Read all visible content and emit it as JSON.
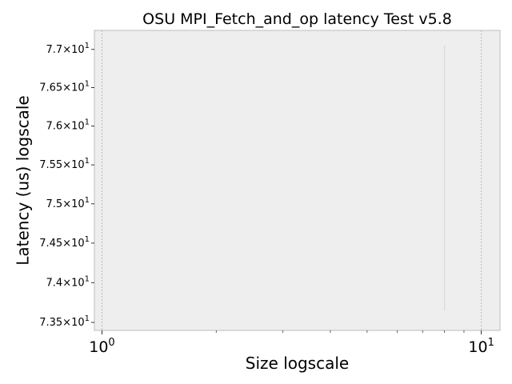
{
  "chart_data": {
    "type": "line",
    "title": "OSU MPI_Fetch_and_op latency Test v5.8",
    "xlabel": "Size logscale",
    "ylabel": "Latency (us) logscale",
    "xscale": "log",
    "yscale": "log",
    "xlim": [
      0.955,
      11.2
    ],
    "ylim": [
      73.4,
      77.25
    ],
    "x_ticks": [
      {
        "value": 1,
        "mantissa": "10",
        "exp": "0"
      },
      {
        "value": 10,
        "mantissa": "10",
        "exp": "1"
      }
    ],
    "y_ticks": [
      {
        "value": 73.5,
        "label": "7.35×10",
        "exp": "1"
      },
      {
        "value": 74.0,
        "label": "7.4×10",
        "exp": "1"
      },
      {
        "value": 74.5,
        "label": "7.45×10",
        "exp": "1"
      },
      {
        "value": 75.0,
        "label": "7.5×10",
        "exp": "1"
      },
      {
        "value": 75.5,
        "label": "7.55×10",
        "exp": "1"
      },
      {
        "value": 76.0,
        "label": "7.6×10",
        "exp": "1"
      },
      {
        "value": 76.5,
        "label": "7.65×10",
        "exp": "1"
      },
      {
        "value": 77.0,
        "label": "7.7×10",
        "exp": "1"
      }
    ],
    "series": [
      {
        "x": [
          8,
          8
        ],
        "y": [
          73.65,
          77.05
        ],
        "color": "#d4d4d4"
      }
    ],
    "grid": true,
    "background": "#eeeeee",
    "frame_color": "#bcbcbc",
    "grid_color": "#b0b0b0"
  }
}
